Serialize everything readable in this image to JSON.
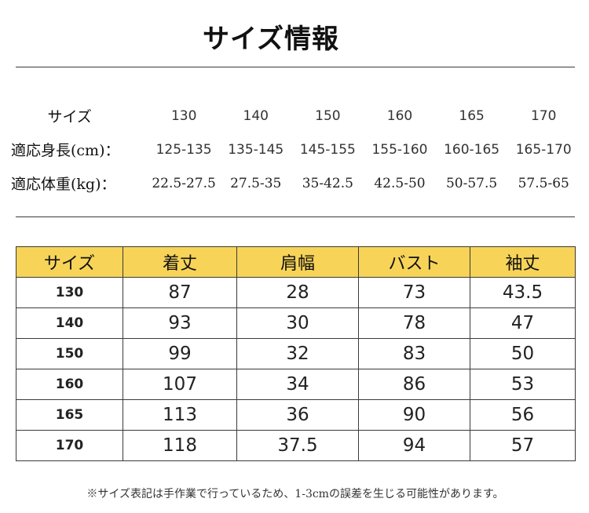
{
  "title": "サイズ情報",
  "fit_table": {
    "size_label": "サイズ",
    "height_label": "適応身長(cm)：",
    "weight_label": "適応体重(kg)：",
    "sizes": [
      "130",
      "140",
      "150",
      "160",
      "165",
      "170"
    ],
    "heights": [
      "125-135",
      "135-145",
      "145-155",
      "155-160",
      "160-165",
      "165-170"
    ],
    "weights": [
      "22.5-27.5",
      "27.5-35",
      "35-42.5",
      "42.5-50",
      "50-57.5",
      "57.5-65"
    ]
  },
  "measure_table": {
    "headers": [
      "サイズ",
      "着丈",
      "肩幅",
      "バスト",
      "袖丈"
    ],
    "rows": [
      [
        "130",
        "87",
        "28",
        "73",
        "43.5"
      ],
      [
        "140",
        "93",
        "30",
        "78",
        "47"
      ],
      [
        "150",
        "99",
        "32",
        "83",
        "50"
      ],
      [
        "160",
        "107",
        "34",
        "86",
        "53"
      ],
      [
        "165",
        "113",
        "36",
        "90",
        "56"
      ],
      [
        "170",
        "118",
        "37.5",
        "94",
        "57"
      ]
    ]
  },
  "note": "※サイズ表記は手作業で行っているため、1-3cmの誤差を生じる可能性があります。",
  "colors": {
    "header_bg": "#f7d358",
    "rule": "#3a3a3a"
  }
}
